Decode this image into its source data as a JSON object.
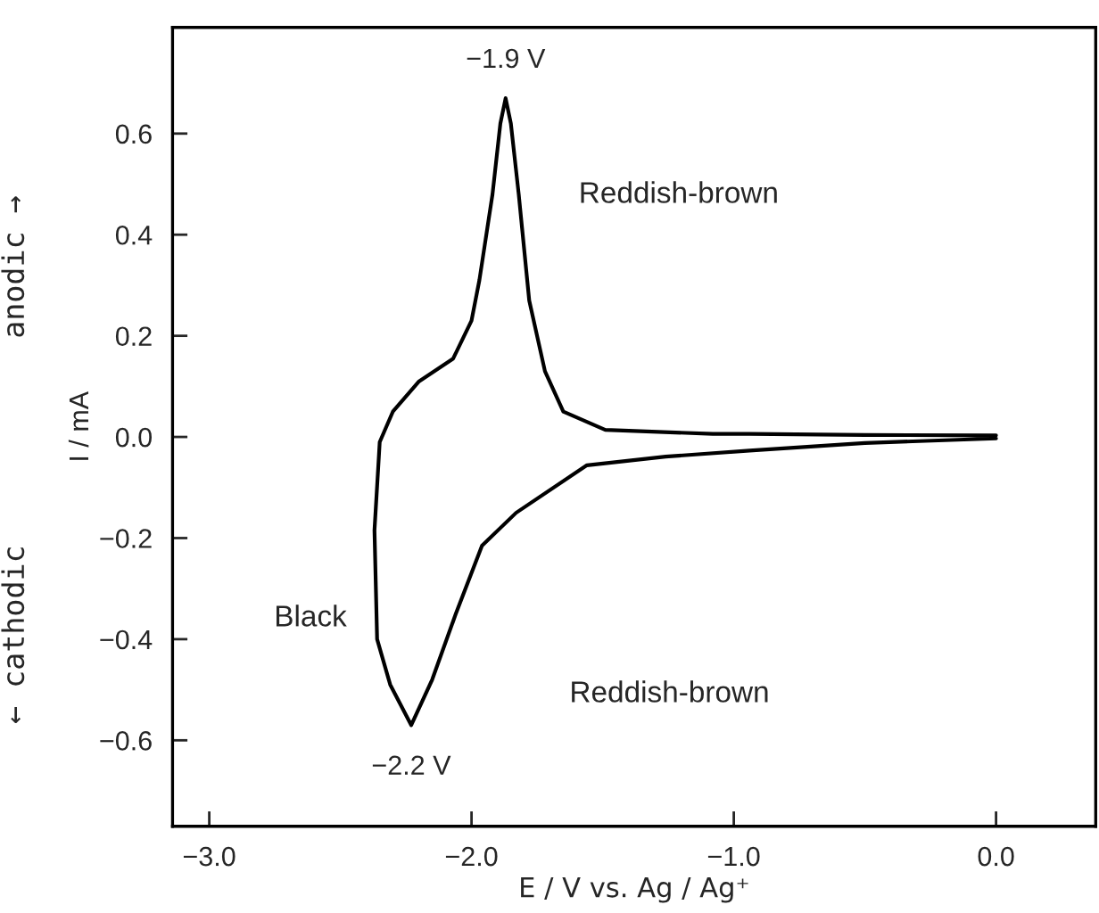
{
  "chart_data": {
    "type": "line",
    "xlabel": "E / V vs. Ag / Ag⁺",
    "ylabel": "I / mA",
    "annotations": [
      {
        "text": "−1.9 V",
        "x": -1.87,
        "y": 0.67
      },
      {
        "text": "−2.2 V",
        "x": -2.23,
        "y": -0.57
      },
      "Reddish-brown",
      "Black",
      "Reddish-brown",
      "anodic →",
      "← cathodic"
    ],
    "series": [
      {
        "color": "#000000",
        "x": [
          0.0,
          -0.5,
          -0.94,
          -1.08,
          -1.49,
          -1.65,
          -1.72,
          -1.78,
          -1.82,
          -1.85,
          -1.87,
          -1.89,
          -1.92,
          -1.97,
          -2.0,
          -2.07,
          -2.2,
          -2.3,
          -2.35,
          -2.37,
          -2.36,
          -2.31,
          -2.23,
          -2.15,
          -2.06,
          -1.96,
          -1.83,
          -1.56,
          -1.26,
          -0.94,
          -0.5,
          0.0
        ],
        "values": [
          0.003,
          0.004,
          0.006,
          0.006,
          0.014,
          0.05,
          0.13,
          0.27,
          0.48,
          0.62,
          0.67,
          0.62,
          0.48,
          0.31,
          0.23,
          0.155,
          0.11,
          0.05,
          -0.01,
          -0.185,
          -0.4,
          -0.49,
          -0.57,
          -0.48,
          -0.35,
          -0.215,
          -0.15,
          -0.056,
          -0.039,
          -0.027,
          -0.012,
          -0.003
        ]
      }
    ],
    "xlim": [
      -3.14,
      0.38
    ],
    "ylim": [
      -0.77,
      0.81
    ],
    "xticks": [
      {
        "value": -3.0,
        "label": "−3.0"
      },
      {
        "value": -2.0,
        "label": "−2.0"
      },
      {
        "value": -1.0,
        "label": "−1.0"
      },
      {
        "value": 0.0,
        "label": "0.0"
      }
    ],
    "yticks": [
      {
        "value": -0.6,
        "label": "−0.6"
      },
      {
        "value": -0.4,
        "label": "−0.4"
      },
      {
        "value": -0.2,
        "label": "−0.2"
      },
      {
        "value": 0.0,
        "label": "0.0"
      },
      0.2,
      0.4,
      0.6
    ],
    "grid": false,
    "legend": false,
    "marker": "none",
    "line_style": "solid"
  }
}
